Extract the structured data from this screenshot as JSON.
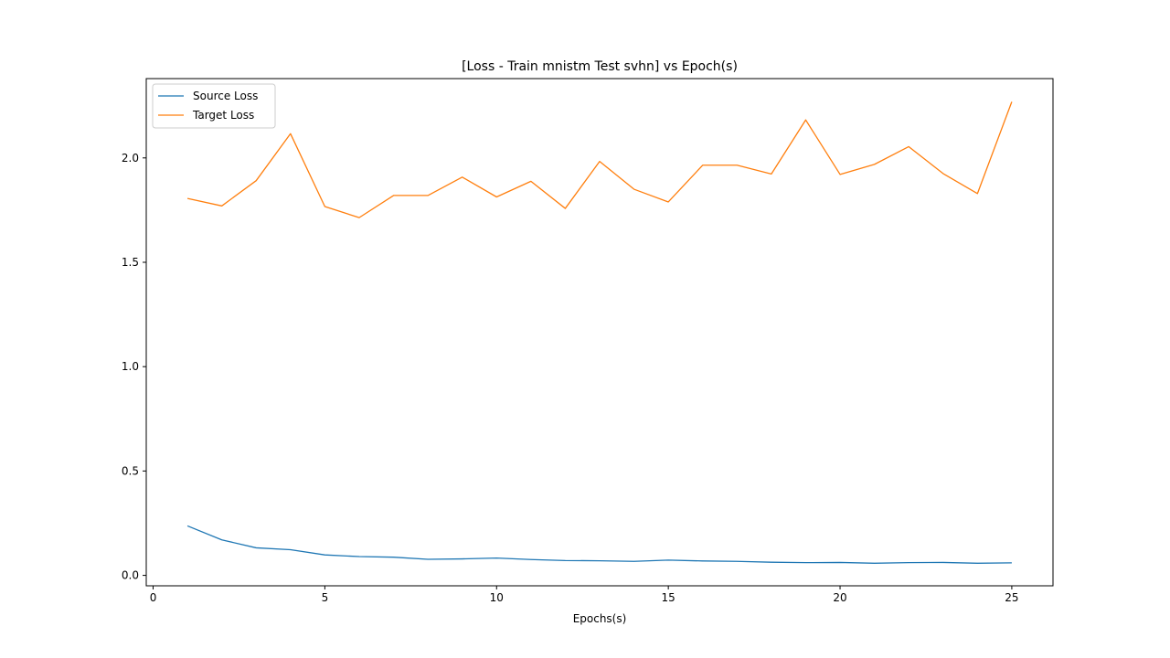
{
  "chart_data": {
    "type": "line",
    "title": "[Loss - Train mnistm Test svhn] vs Epoch(s)",
    "xlabel": "Epochs(s)",
    "ylabel": "",
    "xlim": [
      -0.2,
      26.2
    ],
    "ylim": [
      -0.05,
      2.38
    ],
    "xticks": [
      0,
      5,
      10,
      15,
      20,
      25
    ],
    "xtick_labels": [
      "0",
      "5",
      "10",
      "15",
      "20",
      "25"
    ],
    "yticks": [
      0.0,
      0.5,
      1.0,
      1.5,
      2.0
    ],
    "ytick_labels": [
      "0.0",
      "0.5",
      "1.0",
      "1.5",
      "2.0"
    ],
    "grid": false,
    "legend_position": "top-left",
    "x": [
      1,
      2,
      3,
      4,
      5,
      6,
      7,
      8,
      9,
      10,
      11,
      12,
      13,
      14,
      15,
      16,
      17,
      18,
      19,
      20,
      21,
      22,
      23,
      24,
      25
    ],
    "series": [
      {
        "name": "Source Loss",
        "color": "#1f77b4",
        "values": [
          0.237,
          0.17,
          0.132,
          0.123,
          0.098,
          0.09,
          0.087,
          0.077,
          0.079,
          0.083,
          0.076,
          0.071,
          0.07,
          0.067,
          0.073,
          0.069,
          0.067,
          0.063,
          0.061,
          0.062,
          0.058,
          0.061,
          0.062,
          0.058,
          0.06
        ]
      },
      {
        "name": "Target Loss",
        "color": "#ff7f0e",
        "values": [
          1.806,
          1.77,
          1.891,
          2.116,
          1.767,
          1.714,
          1.82,
          1.82,
          1.908,
          1.813,
          1.888,
          1.758,
          1.983,
          1.85,
          1.789,
          1.965,
          1.965,
          1.923,
          2.182,
          1.921,
          1.969,
          2.054,
          1.925,
          1.829,
          2.269
        ]
      }
    ]
  }
}
